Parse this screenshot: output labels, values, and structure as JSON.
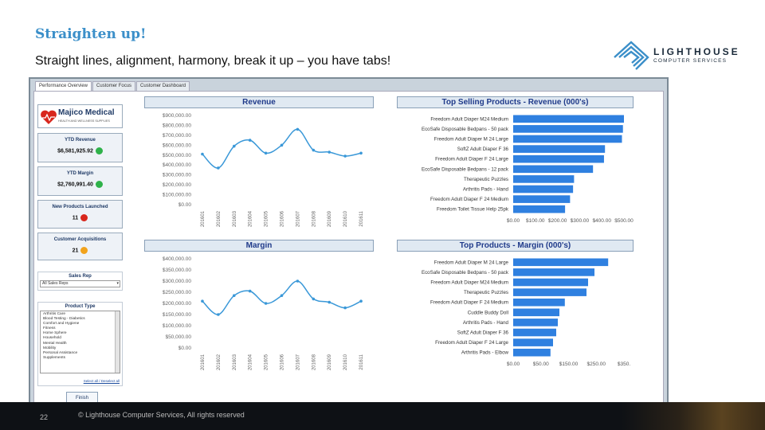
{
  "slide": {
    "title": "Straighten up!",
    "subtitle": "Straight lines, alignment, harmony, break it up – you have tabs!",
    "page_number": "22",
    "copyright": "© Lighthouse Computer Services, All rights reserved"
  },
  "logo": {
    "name": "LIGHTHOUSE",
    "tagline": "COMPUTER SERVICES"
  },
  "dashboard": {
    "tabs": [
      "Performance Overview",
      "Customer Focus",
      "Customer Dashboard"
    ],
    "brand": {
      "name": "Majico Medical",
      "tagline": "HEALTH AND WELLNESS SUPPLIES"
    },
    "kpis": [
      {
        "label": "YTD Revenue",
        "value": "$6,581,925.92",
        "status": "#2fb24a"
      },
      {
        "label": "YTD Margin",
        "value": "$2,760,991.40",
        "status": "#2fb24a"
      },
      {
        "label": "New Products Launched",
        "value": "11",
        "status": "#d8261c"
      },
      {
        "label": "Customer Acquisitions",
        "value": "21",
        "status": "#f2a31c"
      }
    ],
    "sales_rep": {
      "label": "Sales Rep",
      "value": "All Sales Reps"
    },
    "product_type": {
      "label": "Product Type",
      "items": [
        "Arthritis Care",
        "Blood Testing - Diabetics",
        "Comfort and Hygiene",
        "Fitness",
        "Home Sphere",
        "Household",
        "Mental Health",
        "Mobility",
        "Personal Assistance",
        "Supplements"
      ],
      "link": "Select all / Deselect all"
    },
    "finish_label": "Finish"
  },
  "chart_data": [
    {
      "type": "line",
      "title": "Revenue",
      "categories": [
        "201601",
        "201602",
        "201603",
        "201604",
        "201605",
        "201606",
        "201607",
        "201608",
        "201609",
        "201610",
        "201611"
      ],
      "values": [
        510000,
        370000,
        590000,
        650000,
        520000,
        600000,
        760000,
        550000,
        530000,
        490000,
        520000
      ],
      "yticks": [
        "$900,000.00",
        "$800,000.00",
        "$700,000.00",
        "$600,000.00",
        "$500,000.00",
        "$400,000.00",
        "$300,000.00",
        "$200,000.00",
        "$100,000.00",
        "$0.00"
      ],
      "ylim": [
        0,
        900000
      ]
    },
    {
      "type": "bar",
      "title": "Top Selling Products - Revenue (000's)",
      "categories": [
        "Freedom Adult Diaper M24 Medium",
        "EcoSafe Disposable Bedpans - 50 pack",
        "Freedom Adult Diaper M 24 Large",
        "SoftZ Adult Diaper F 36",
        "Freedom Adult Diaper F 24 Large",
        "EcoSafe Disposable Bedpans - 12 pack",
        "Therapeutic Puzzles",
        "Arthritis Pads - Hand",
        "Freedom Adult Diaper F 24 Medium",
        "Freedom Toilet Tissue Help 25pk"
      ],
      "values": [
        555,
        550,
        545,
        460,
        455,
        400,
        305,
        300,
        285,
        260
      ],
      "xticks": [
        "$0.00",
        "$100.00",
        "$200.00",
        "$300.00",
        "$400.00",
        "$500.00"
      ],
      "xlim": [
        0,
        575
      ]
    },
    {
      "type": "line",
      "title": "Margin",
      "categories": [
        "201601",
        "201602",
        "201603",
        "201604",
        "201605",
        "201606",
        "201607",
        "201608",
        "201609",
        "201610",
        "201611"
      ],
      "values": [
        210000,
        150000,
        235000,
        255000,
        200000,
        235000,
        300000,
        220000,
        205000,
        180000,
        210000
      ],
      "yticks": [
        "$400,000.00",
        "$350,000.00",
        "$300,000.00",
        "$250,000.00",
        "$200,000.00",
        "$150,000.00",
        "$100,000.00",
        "$50,000.00",
        "$0.00"
      ],
      "ylim": [
        0,
        400000
      ]
    },
    {
      "type": "bar",
      "title": "Top Products - Margin (000's)",
      "categories": [
        "Freedom Adult Diaper M 24 Large",
        "EcoSafe Disposable Bedpans - 50 pack",
        "Freedom Adult Diaper M24 Medium",
        "Therapeutic Puzzles",
        "Freedom Adult Diaper F 24 Medium",
        "Cuddle Buddy Doll",
        "Arthritis Pads - Hand",
        "SoftZ Adult Diaper F 36",
        "Freedom Adult Diaper F 24 Large",
        "Arthritis Pads - Elbow"
      ],
      "values": [
        298,
        255,
        235,
        230,
        162,
        145,
        140,
        135,
        125,
        117
      ],
      "xticks": [
        "$0.00",
        "$50.00",
        "$150.00",
        "$250.00",
        "$350."
      ],
      "xlim": [
        0,
        360
      ]
    }
  ]
}
